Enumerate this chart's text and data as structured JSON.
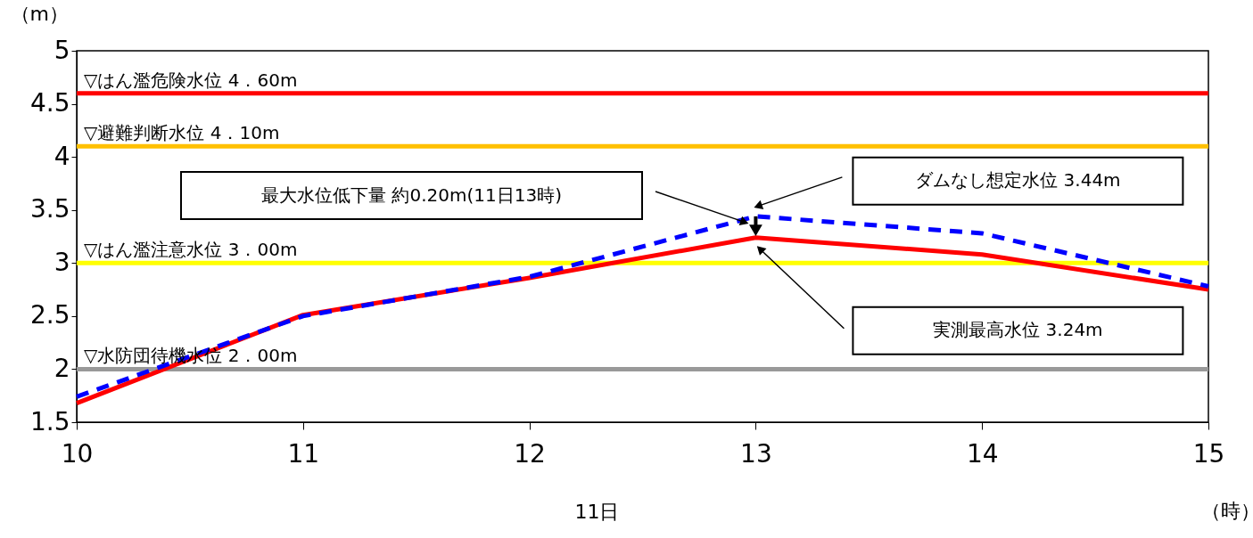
{
  "chart_data": {
    "type": "line",
    "ylabel": "（m）",
    "xlabel": "11日",
    "x": [
      10,
      11,
      12,
      13,
      14,
      15
    ],
    "series": [
      {
        "color": "#ff0000",
        "line_style": "solid",
        "values": [
          1.68,
          2.51,
          2.86,
          3.24,
          3.08,
          2.75
        ]
      },
      {
        "color": "#0000ff",
        "line_style": "dashed",
        "values": [
          1.74,
          2.5,
          2.87,
          3.44,
          3.28,
          2.78
        ]
      }
    ],
    "xlim": [
      10,
      15
    ],
    "xticks": [
      10,
      11,
      12,
      13,
      14,
      15
    ],
    "ylim": [
      1.5,
      5
    ],
    "yticks": [
      1.5,
      2,
      2.5,
      3,
      3.5,
      4,
      4.5,
      5
    ],
    "grid": false,
    "legend": false,
    "marker": "none",
    "ref_lines": [
      {
        "axis": "y",
        "value": 4.6,
        "label": "▽はん濫危険水位 4．60m",
        "color": "#ff0000"
      },
      {
        "axis": "y",
        "value": 4.1,
        "label": "▽避難判断水位 4．10m",
        "color": "#ffc000"
      },
      {
        "axis": "y",
        "value": 3.0,
        "label": "▽はん濫注意水位 3．00m",
        "color": "#ffff00"
      },
      {
        "axis": "y",
        "value": 2.0,
        "label": "▽水防団待機水位 2．00m",
        "color": "#999999"
      }
    ],
    "annotations": [
      "最大水位低下量 約0.20m(11日13時)",
      "ダムなし想定水位  3.44m",
      "実測最高水位  3.24m",
      "（時）"
    ]
  }
}
